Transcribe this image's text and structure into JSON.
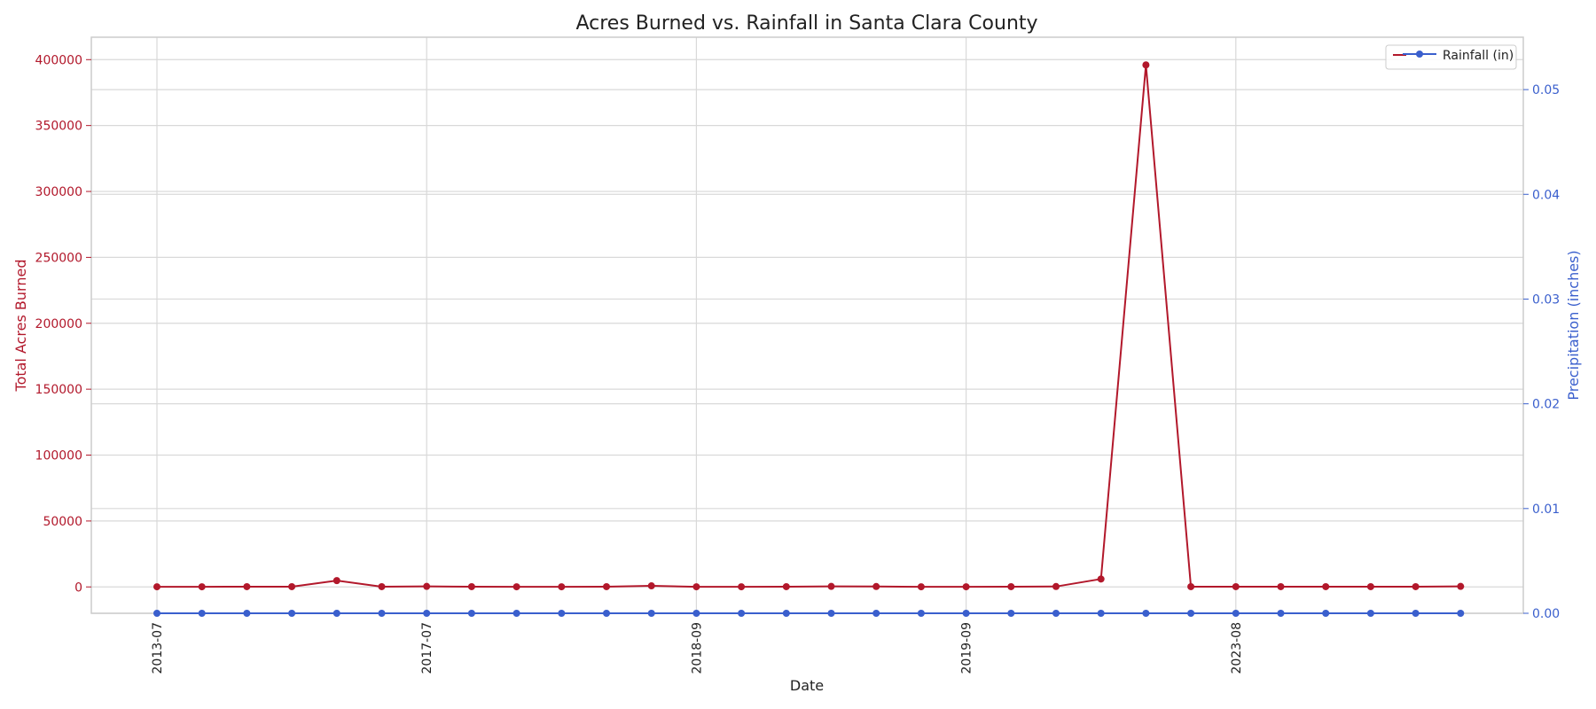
{
  "chart_data": {
    "type": "line",
    "title": "Acres Burned vs. Rainfall in Santa Clara County",
    "xlabel": "Date",
    "ylabel_left": "Total Acres Burned",
    "ylabel_right": "Precipitation (inches)",
    "x_tick_labels": [
      "2013-07",
      "2017-07",
      "2018-09",
      "2019-09",
      "2023-08"
    ],
    "x_tick_indices": [
      0,
      6,
      12,
      18,
      24
    ],
    "left_axis": {
      "ylim": [
        -20000,
        417000
      ],
      "ticks": [
        0,
        50000,
        100000,
        150000,
        200000,
        250000,
        300000,
        350000,
        400000
      ],
      "color": "#b2182b"
    },
    "right_axis": {
      "ylim": [
        0,
        0.055
      ],
      "ticks": [
        "0.00",
        "0.01",
        "0.02",
        "0.03",
        "0.04",
        "0.05"
      ],
      "color": "#3a5fcd"
    },
    "grid": true,
    "legend_position": "upper-right",
    "series": [
      {
        "name": "Acres Burned",
        "axis": "left",
        "color": "#b2182b",
        "values": [
          100,
          100,
          200,
          200,
          4800,
          200,
          400,
          200,
          100,
          100,
          200,
          800,
          100,
          100,
          200,
          400,
          300,
          100,
          100,
          200,
          300,
          6000,
          396000,
          200,
          200,
          200,
          200,
          200,
          200,
          400
        ]
      },
      {
        "name": "Rainfall (in)",
        "axis": "right",
        "color": "#3a5fcd",
        "values": [
          0,
          0,
          0,
          0,
          0,
          0,
          0,
          0,
          0,
          0,
          0,
          0,
          0,
          0,
          0,
          0,
          0,
          0,
          0,
          0,
          0,
          0,
          0,
          0,
          0,
          0,
          0,
          0,
          0,
          0
        ]
      }
    ]
  }
}
